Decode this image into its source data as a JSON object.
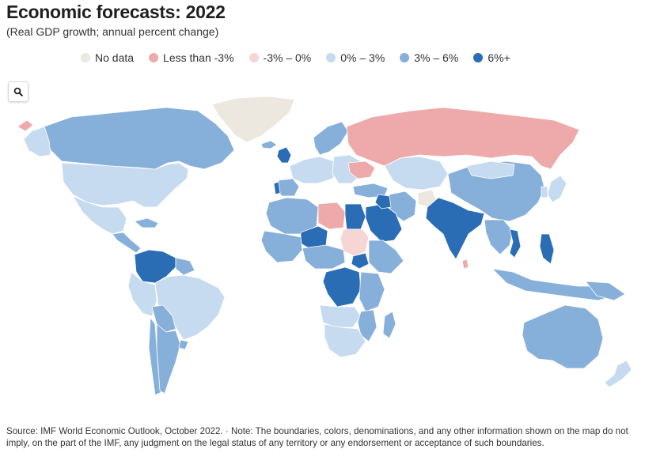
{
  "title": "Economic forecasts: 2022",
  "subtitle": "(Real GDP growth; annual percent change)",
  "legend": [
    {
      "label": "No data",
      "color": "#ece8df"
    },
    {
      "label": "Less than -3%",
      "color": "#eeaaaa"
    },
    {
      "label": "-3% – 0%",
      "color": "#f6d5d5"
    },
    {
      "label": "0% – 3%",
      "color": "#c6dbef"
    },
    {
      "label": "3% – 6%",
      "color": "#86afda"
    },
    {
      "label": "6%+",
      "color": "#2a6db5"
    }
  ],
  "zoom": {
    "icon": "search-icon"
  },
  "source": "Source: IMF World Economic Outlook, October 2022. · Note: The boundaries, colors, denominations, and any other information shown on the map do not imply, on the part of the IMF, any judgment on the legal status of any territory or any endorsement or acceptance of such boundaries."
}
